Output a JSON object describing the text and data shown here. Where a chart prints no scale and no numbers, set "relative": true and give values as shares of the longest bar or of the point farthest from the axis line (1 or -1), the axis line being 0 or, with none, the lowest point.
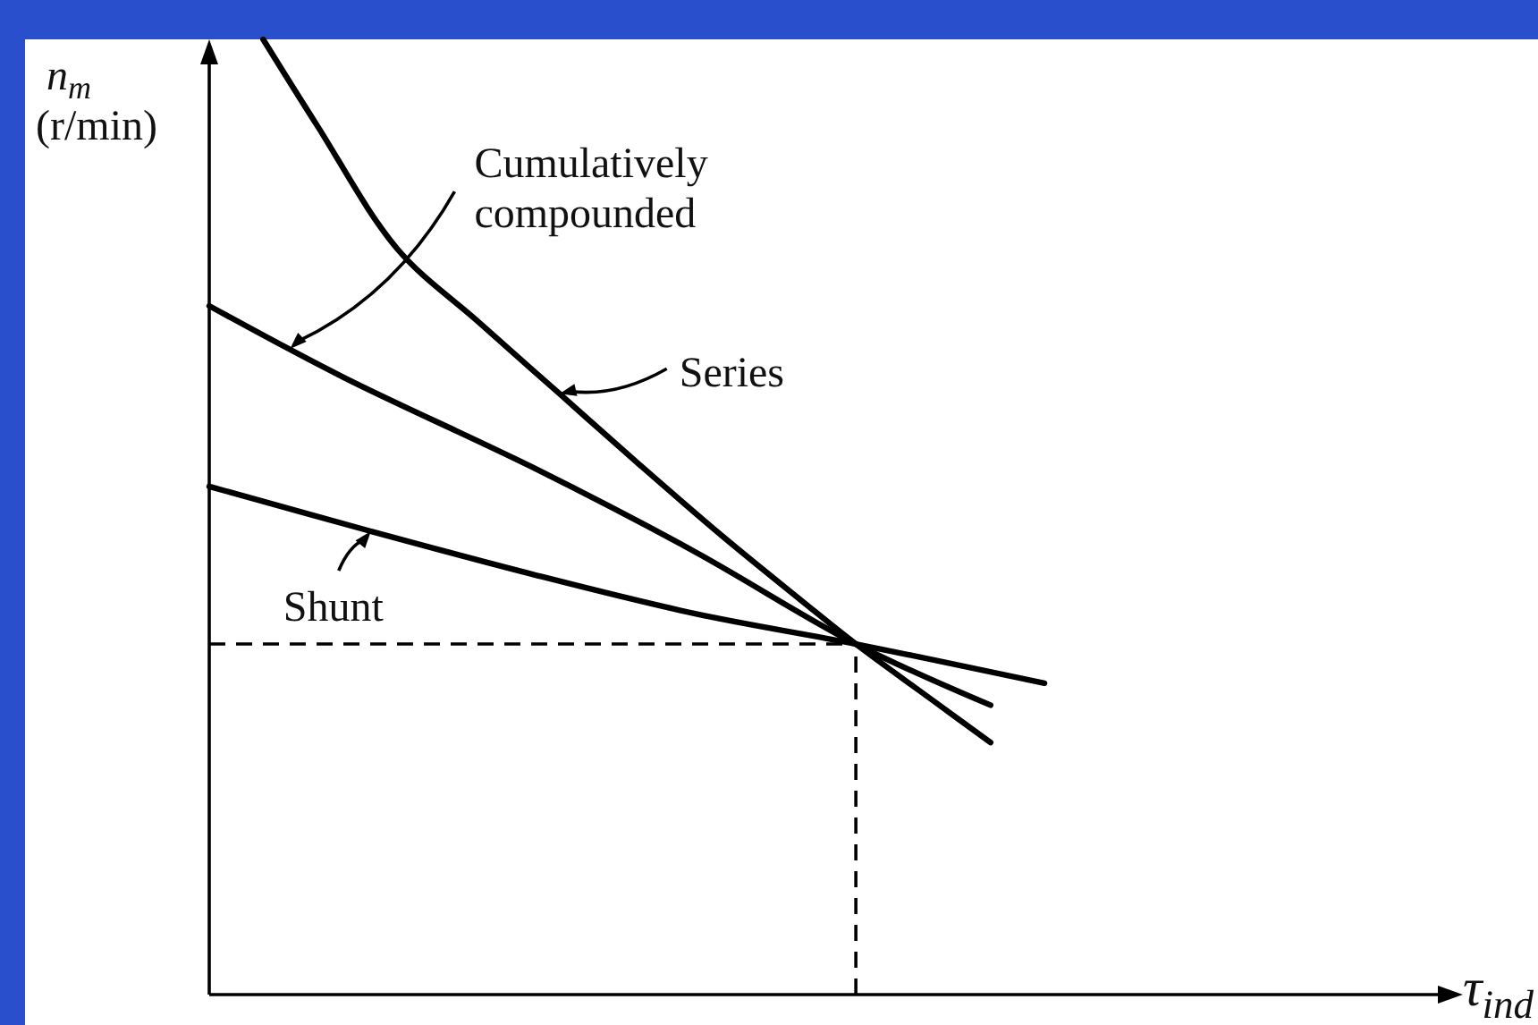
{
  "chart_data": {
    "type": "line",
    "relative": true,
    "xlabel": "τ$_{ind}$",
    "ylabel": "n$_{m}$ (r/min)",
    "categories": [
      null,
      null,
      null,
      null,
      null,
      null,
      null,
      null,
      null,
      null,
      null,
      null,
      null,
      null,
      null,
      null,
      null,
      null,
      null,
      null,
      null,
      null,
      null,
      null,
      null,
      null,
      null,
      null,
      null,
      null,
      null,
      null,
      null,
      null,
      null,
      null,
      null,
      null,
      null,
      null,
      null,
      null,
      null,
      null,
      null,
      null,
      null
    ],
    "series": [
      {
        "name": "Series",
        "color": "#000000",
        "values": [
          null,
          null,
          1.0,
          null,
          0.91,
          null,
          null,
          0.78,
          null,
          null,
          0.704,
          null,
          null,
          0.629,
          null,
          null,
          0.554,
          null,
          null,
          0.481,
          null,
          null,
          0.412,
          null,
          0.367,
          null,
          null,
          0.305,
          null,
          0.264,
          null,
          null,
          null,
          null,
          null,
          null,
          null,
          null,
          null,
          null,
          null,
          null,
          null,
          null,
          null,
          null,
          null
        ]
      },
      {
        "name": "Cumulatively compounded",
        "color": "#000000",
        "values": [
          0.721,
          null,
          null,
          null,
          null,
          0.646,
          null,
          null,
          null,
          null,
          null,
          null,
          0.552,
          null,
          null,
          null,
          null,
          null,
          0.464,
          null,
          null,
          null,
          null,
          null,
          0.367,
          null,
          null,
          null,
          null,
          0.303,
          null,
          null,
          null,
          null,
          null,
          null,
          null,
          null,
          null,
          null,
          null,
          null,
          null,
          null,
          null,
          null,
          null
        ]
      },
      {
        "name": "Shunt",
        "color": "#000000",
        "values": [
          0.532,
          null,
          null,
          null,
          null,
          null,
          0.485,
          null,
          null,
          null,
          null,
          null,
          0.44,
          null,
          null,
          null,
          null,
          null,
          0.399,
          null,
          null,
          null,
          null,
          null,
          0.367,
          null,
          null,
          null,
          null,
          null,
          null,
          0.326,
          null,
          null,
          null,
          null,
          null,
          null,
          null,
          null,
          null,
          null,
          null,
          null,
          null,
          null,
          null
        ]
      }
    ],
    "ref_lines": [
      {
        "axis": "y",
        "value": 0.367,
        "color": "#000000",
        "line_style": "dashed"
      }
    ],
    "marker": "none",
    "line_style": "solid"
  }
}
